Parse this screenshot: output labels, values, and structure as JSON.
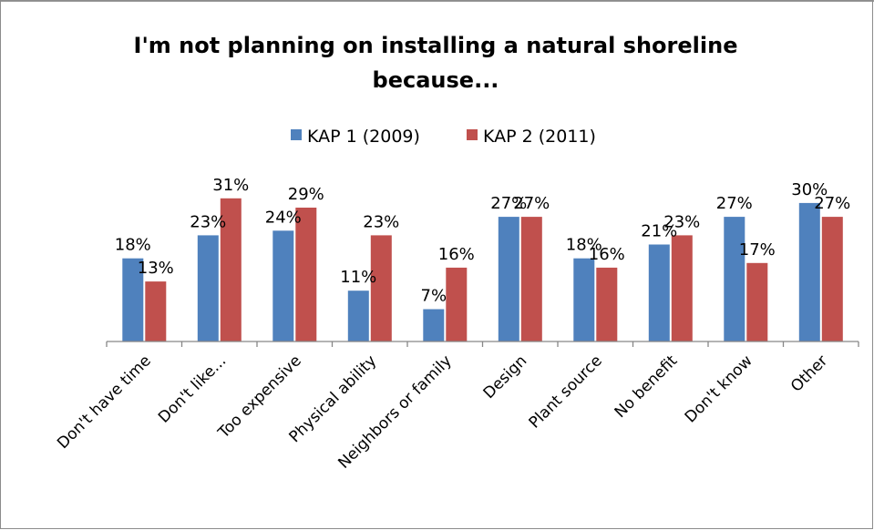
{
  "chart_data": {
    "type": "bar",
    "title_lines": [
      "I'm not planning on installing a natural shoreline",
      "because..."
    ],
    "categories": [
      "Don't have time",
      "Don't like...",
      "Too expensive",
      "Physical ability",
      "Neighbors or family",
      "Design",
      "Plant source",
      "No benefit",
      "Don't know",
      "Other"
    ],
    "series": [
      {
        "name": "KAP 1 (2009)",
        "color": "#4f81bd",
        "values": [
          18,
          23,
          24,
          11,
          7,
          27,
          18,
          21,
          27,
          30
        ],
        "labels": [
          "18%",
          "23%",
          "24%",
          "11%",
          "7%",
          "27%",
          "18%",
          "21%",
          "27%",
          "30%"
        ]
      },
      {
        "name": "KAP 2 (2011)",
        "color": "#c0504d",
        "values": [
          13,
          31,
          29,
          23,
          16,
          27,
          16,
          23,
          17,
          27
        ],
        "labels": [
          "13%",
          "31%",
          "29%",
          "23%",
          "16%",
          "27%",
          "16%",
          "23%",
          "17%",
          "27%"
        ]
      }
    ],
    "ylim": [
      0,
      33
    ],
    "grid": false,
    "legend_position": "top"
  }
}
